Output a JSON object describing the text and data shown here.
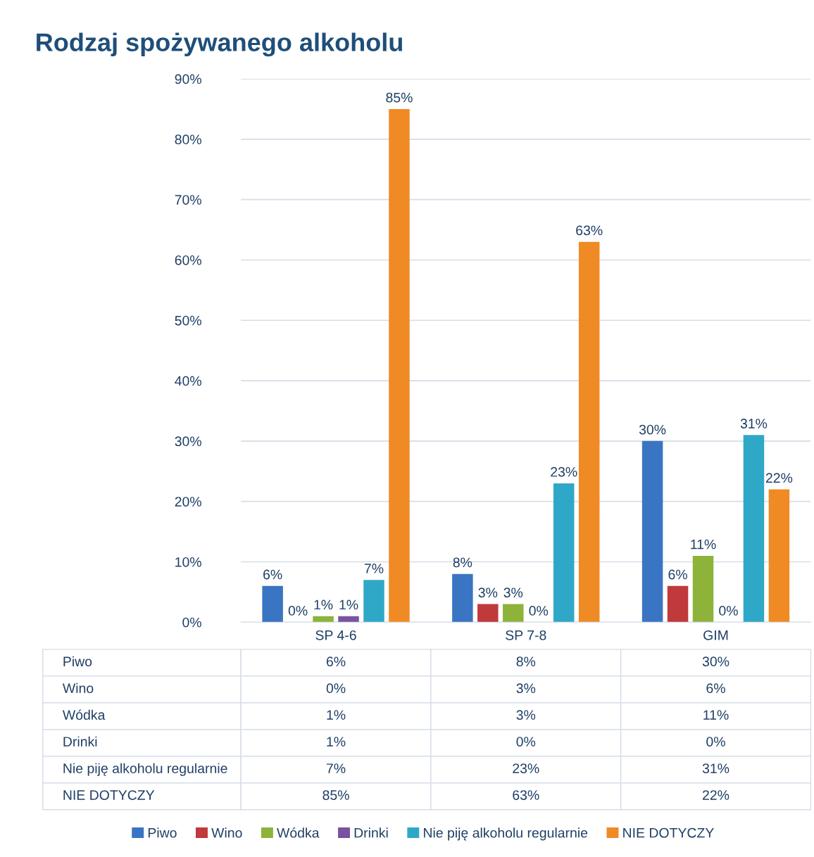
{
  "chart_data": {
    "type": "bar",
    "title": "Rodzaj spożywanego alkoholu",
    "categories": [
      "SP 4-6",
      "SP 7-8",
      "GIM"
    ],
    "series": [
      {
        "name": "Piwo",
        "color": "#3a75c4",
        "values": [
          6,
          8,
          30
        ],
        "value_labels": [
          "6%",
          "8%",
          "30%"
        ]
      },
      {
        "name": "Wino",
        "color": "#c0393b",
        "values": [
          0,
          3,
          6
        ],
        "value_labels": [
          "0%",
          "3%",
          "6%"
        ]
      },
      {
        "name": "Wódka",
        "color": "#8db33a",
        "values": [
          1,
          3,
          11
        ],
        "value_labels": [
          "1%",
          "3%",
          "11%"
        ]
      },
      {
        "name": "Drinki",
        "color": "#7a52a0",
        "values": [
          1,
          0,
          0
        ],
        "value_labels": [
          "1%",
          "0%",
          "0%"
        ]
      },
      {
        "name": "Nie piję alkoholu regularnie",
        "color": "#2fa8c8",
        "values": [
          7,
          23,
          31
        ],
        "value_labels": [
          "7%",
          "23%",
          "31%"
        ]
      },
      {
        "name": "NIE DOTYCZY",
        "color": "#f08a24",
        "values": [
          85,
          63,
          22
        ],
        "value_labels": [
          "85%",
          "63%",
          "22%"
        ]
      }
    ],
    "ylim": [
      0,
      90
    ],
    "yticks": [
      {
        "value": 0,
        "label": "0%"
      },
      {
        "value": 10,
        "label": "10%"
      },
      {
        "value": 20,
        "label": "20%"
      },
      {
        "value": 30,
        "label": "30%"
      },
      {
        "value": 40,
        "label": "40%"
      },
      {
        "value": 50,
        "label": "50%"
      },
      {
        "value": 60,
        "label": "60%"
      },
      {
        "value": 70,
        "label": "70%"
      },
      {
        "value": 80,
        "label": "80%"
      },
      {
        "value": 90,
        "label": "90%"
      }
    ],
    "grid": "y",
    "legend": "bottom"
  }
}
